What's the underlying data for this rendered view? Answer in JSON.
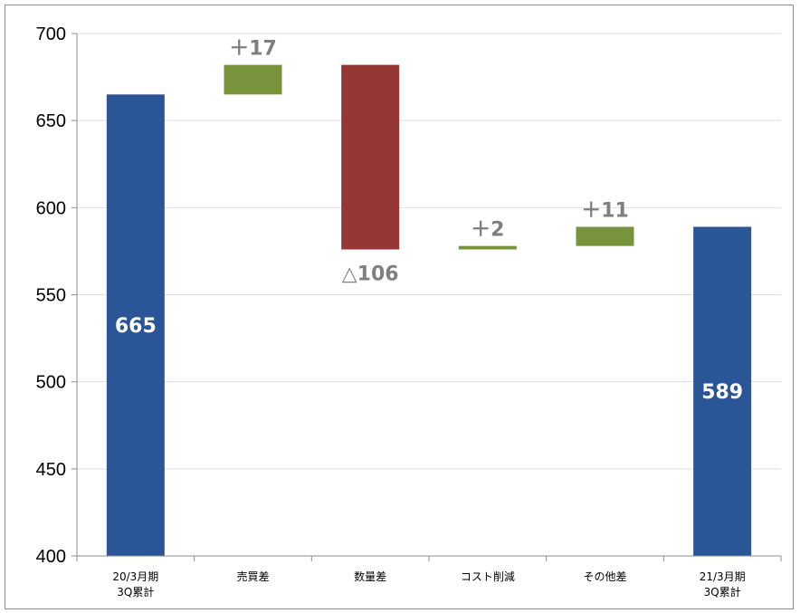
{
  "chart_data": {
    "type": "bar",
    "subtype": "waterfall",
    "title": "",
    "xlabel": "",
    "ylabel": "",
    "ylim": [
      400,
      700
    ],
    "yticks": [
      400,
      450,
      500,
      550,
      600,
      650,
      700
    ],
    "grid": true,
    "legend": "none",
    "categories": [
      [
        "20/3月期",
        "3Q累計"
      ],
      [
        "売買差"
      ],
      [
        "数量差"
      ],
      [
        "コスト削減"
      ],
      [
        "その他差"
      ],
      [
        "21/3月期",
        "3Q累計"
      ]
    ],
    "bars": [
      {
        "kind": "total",
        "start": 400,
        "end": 665,
        "color": "#2a5597",
        "label": "665",
        "label_position": "inside"
      },
      {
        "kind": "increase",
        "start": 665,
        "end": 682,
        "color": "#77933c",
        "label": "＋17",
        "label_position": "above"
      },
      {
        "kind": "decrease",
        "start": 682,
        "end": 576,
        "color": "#953735",
        "label": "△106",
        "label_position": "below"
      },
      {
        "kind": "increase",
        "start": 576,
        "end": 578,
        "color": "#77933c",
        "label": "＋2",
        "label_position": "above"
      },
      {
        "kind": "increase",
        "start": 578,
        "end": 589,
        "color": "#77933c",
        "label": "＋11",
        "label_position": "above"
      },
      {
        "kind": "total",
        "start": 400,
        "end": 589,
        "color": "#2a5597",
        "label": "589",
        "label_position": "inside"
      }
    ]
  }
}
